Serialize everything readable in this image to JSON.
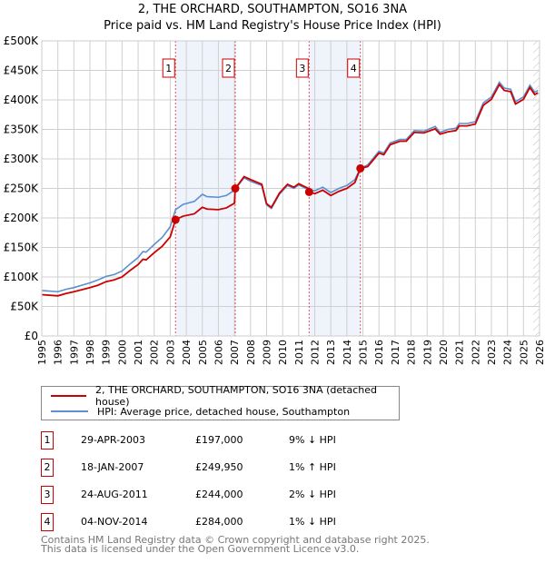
{
  "chart_data": {
    "type": "line",
    "title": "2, THE ORCHARD, SOUTHAMPTON, SO16 3NA",
    "subtitle": "Price paid vs. HM Land Registry's House Price Index (HPI)",
    "xlim": [
      1995,
      2026
    ],
    "ylim": [
      0,
      500000
    ],
    "yticks": [
      {
        "v": 0,
        "label": "£0"
      },
      {
        "v": 50000,
        "label": "£50K"
      },
      {
        "v": 100000,
        "label": "£100K"
      },
      {
        "v": 150000,
        "label": "£150K"
      },
      {
        "v": 200000,
        "label": "£200K"
      },
      {
        "v": 250000,
        "label": "£250K"
      },
      {
        "v": 300000,
        "label": "£300K"
      },
      {
        "v": 350000,
        "label": "£350K"
      },
      {
        "v": 400000,
        "label": "£400K"
      },
      {
        "v": 450000,
        "label": "£450K"
      },
      {
        "v": 500000,
        "label": "£500K"
      }
    ],
    "xticks": [
      1995,
      1996,
      1997,
      1998,
      1999,
      2000,
      2001,
      2002,
      2003,
      2004,
      2005,
      2006,
      2007,
      2008,
      2009,
      2010,
      2011,
      2012,
      2013,
      2014,
      2015,
      2016,
      2017,
      2018,
      2019,
      2020,
      2021,
      2022,
      2023,
      2024,
      2025,
      2026
    ],
    "grid": true,
    "series": [
      {
        "name": "2, THE ORCHARD, SOUTHAMPTON, SO16 3NA (detached house)",
        "color": "#cc0000",
        "x": [
          1995,
          1996,
          1996.5,
          1997,
          1998,
          1998.5,
          1999,
          1999.5,
          2000,
          2000.5,
          2001,
          2001.3,
          2001.5,
          2002,
          2002.5,
          2003,
          2003.33,
          2003.8,
          2004.5,
          2005,
          2005.3,
          2006,
          2006.5,
          2007,
          2007.05,
          2007.6,
          2008,
          2008.7,
          2009,
          2009.3,
          2009.8,
          2010.3,
          2010.7,
          2011,
          2011.6,
          2011.65,
          2012,
          2012.5,
          2013,
          2013.5,
          2014,
          2014.5,
          2014.84,
          2015.3,
          2016,
          2016.3,
          2016.7,
          2017.3,
          2017.7,
          2018.2,
          2018.8,
          2019.5,
          2019.8,
          2020.3,
          2020.8,
          2021,
          2021.5,
          2022,
          2022.5,
          2023,
          2023.5,
          2023.8,
          2024.2,
          2024.5,
          2025,
          2025.4,
          2025.7,
          2025.9
        ],
        "y": [
          70000,
          68000,
          72000,
          75000,
          82000,
          86000,
          92000,
          95000,
          100000,
          111000,
          121000,
          130000,
          129000,
          141000,
          152000,
          168000,
          197000,
          203000,
          207000,
          218000,
          215000,
          214000,
          217000,
          225000,
          249950,
          270000,
          265000,
          257000,
          224000,
          218000,
          242000,
          257000,
          252000,
          258000,
          250000,
          244000,
          241000,
          247000,
          238000,
          245000,
          250000,
          260000,
          284000,
          287000,
          310000,
          307000,
          324000,
          330000,
          330000,
          345000,
          344000,
          351000,
          342000,
          346000,
          348000,
          356000,
          356000,
          359000,
          391000,
          401000,
          426000,
          416000,
          414000,
          393000,
          401000,
          421000,
          409000,
          412000
        ]
      },
      {
        "name": "HPI: Average price, detached house, Southampton",
        "color": "#5b8fd0",
        "x": [
          1995,
          1996,
          1996.5,
          1997,
          1998,
          1998.5,
          1999,
          1999.5,
          2000,
          2000.5,
          2001,
          2001.3,
          2001.5,
          2002,
          2002.5,
          2003,
          2003.33,
          2003.8,
          2004.5,
          2005,
          2005.3,
          2006,
          2006.5,
          2007,
          2007.6,
          2008,
          2008.7,
          2009,
          2009.3,
          2009.8,
          2010.3,
          2010.7,
          2011,
          2011.6,
          2012,
          2012.5,
          2013,
          2013.5,
          2014,
          2014.5,
          2014.84,
          2015.3,
          2016,
          2016.3,
          2016.7,
          2017.3,
          2017.7,
          2018.2,
          2018.8,
          2019.5,
          2019.8,
          2020.3,
          2020.8,
          2021,
          2021.5,
          2022,
          2022.5,
          2023,
          2023.5,
          2023.8,
          2024.2,
          2024.5,
          2025,
          2025.4,
          2025.7,
          2025.9
        ],
        "y": [
          77000,
          75000,
          79000,
          82000,
          90000,
          95000,
          101000,
          104000,
          110000,
          122000,
          133000,
          143000,
          142000,
          155000,
          167000,
          185000,
          214000,
          223000,
          228000,
          240000,
          236000,
          235000,
          238000,
          247000,
          268000,
          262000,
          255000,
          222000,
          216000,
          240000,
          255000,
          250000,
          256000,
          248000,
          246000,
          252000,
          243000,
          250000,
          255000,
          265000,
          284000,
          290000,
          313000,
          310000,
          327000,
          333000,
          333000,
          348000,
          347000,
          355000,
          345000,
          350000,
          352000,
          360000,
          360000,
          363000,
          395000,
          405000,
          430000,
          420000,
          418000,
          397000,
          405000,
          425000,
          413000,
          416000
        ]
      }
    ],
    "sales": [
      {
        "id": "1",
        "x": 2003.33,
        "price": 197000,
        "date": "29-APR-2003",
        "price_label": "£197,000",
        "hpi": "9% ↓ HPI"
      },
      {
        "id": "2",
        "x": 2007.05,
        "price": 249950,
        "date": "18-JAN-2007",
        "price_label": "£249,950",
        "hpi": "1% ↑ HPI"
      },
      {
        "id": "3",
        "x": 2011.65,
        "price": 244000,
        "date": "24-AUG-2011",
        "price_label": "£244,000",
        "hpi": "2% ↓ HPI"
      },
      {
        "id": "4",
        "x": 2014.84,
        "price": 284000,
        "date": "04-NOV-2014",
        "price_label": "£284,000",
        "hpi": "1% ↓ HPI"
      }
    ],
    "shaded_periods": [
      [
        2003.33,
        2007.05
      ],
      [
        2011.65,
        2014.84
      ]
    ],
    "forecast_from": 2025.6,
    "legend_placement": "below"
  },
  "footer": {
    "line1": "Contains HM Land Registry data © Crown copyright and database right 2025.",
    "line2": "This data is licensed under the Open Government Licence v3.0."
  }
}
